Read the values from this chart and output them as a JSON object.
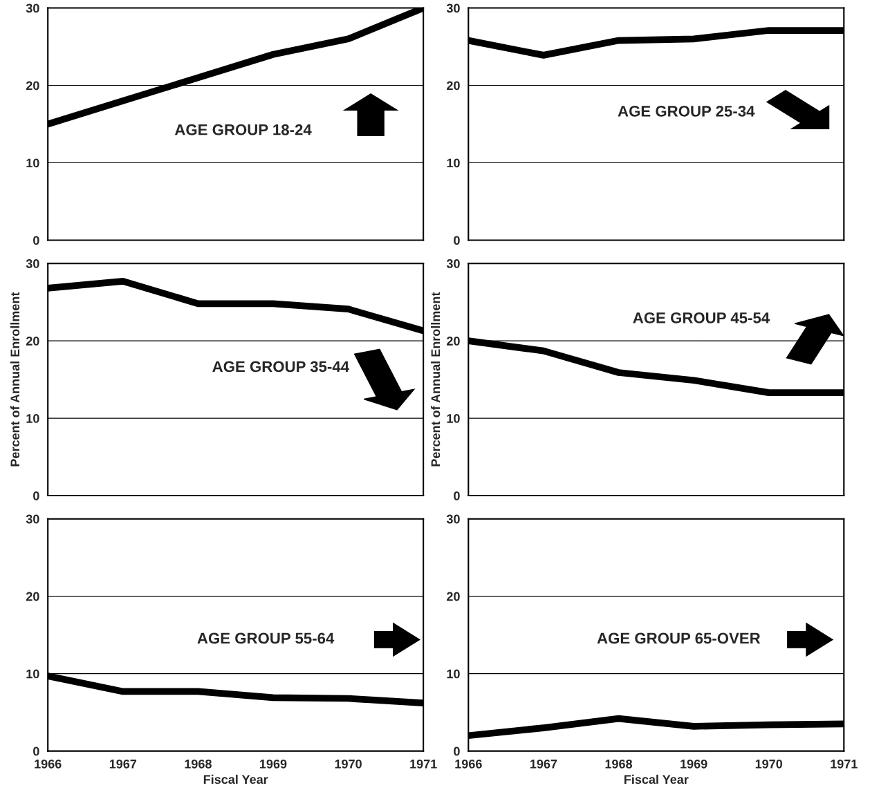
{
  "chart_data": [
    {
      "type": "line",
      "x": [
        1966,
        1967,
        1968,
        1969,
        1970,
        1971
      ],
      "series": [
        {
          "color": "#000000",
          "values": [
            15,
            18,
            21,
            24,
            26,
            30
          ]
        }
      ],
      "xlim": [
        1966,
        1971
      ],
      "ylim": [
        0,
        30
      ],
      "xticks": [
        1966,
        1967,
        1968,
        1969,
        1970,
        1971
      ],
      "yticks": [
        0,
        10,
        20,
        30
      ],
      "tick_labels": "y",
      "grid": "y",
      "annotations": [
        "AGE GROUP 18-24"
      ]
    },
    {
      "type": "line",
      "x": [
        1966,
        1967,
        1968,
        1969,
        1970,
        1971
      ],
      "series": [
        {
          "color": "#000000",
          "values": [
            25.8,
            23.9,
            25.8,
            26,
            27.1,
            27.1
          ]
        }
      ],
      "xlim": [
        1966,
        1971
      ],
      "ylim": [
        0,
        30
      ],
      "xticks": [
        1966,
        1967,
        1968,
        1969,
        1970,
        1971
      ],
      "yticks": [
        0,
        10,
        20,
        30
      ],
      "tick_labels": "y",
      "grid": "y",
      "annotations": [
        "AGE GROUP 25-34"
      ]
    },
    {
      "type": "line",
      "x": [
        1966,
        1967,
        1968,
        1969,
        1970,
        1971
      ],
      "series": [
        {
          "color": "#000000",
          "values": [
            26.8,
            27.7,
            24.8,
            24.8,
            24.1,
            21.3
          ]
        }
      ],
      "xlim": [
        1966,
        1971
      ],
      "ylim": [
        0,
        30
      ],
      "xticks": [
        1966,
        1967,
        1968,
        1969,
        1970,
        1971
      ],
      "yticks": [
        0,
        10,
        20,
        30
      ],
      "tick_labels": "y",
      "grid": "y",
      "ylabel": "Percent of Annual Enrollment",
      "annotations": [
        "AGE GROUP 35-44"
      ]
    },
    {
      "type": "line",
      "x": [
        1966,
        1967,
        1968,
        1969,
        1970,
        1971
      ],
      "series": [
        {
          "color": "#000000",
          "values": [
            20,
            18.7,
            15.9,
            14.9,
            13.3,
            13.3
          ]
        }
      ],
      "xlim": [
        1966,
        1971
      ],
      "ylim": [
        0,
        30
      ],
      "xticks": [
        1966,
        1967,
        1968,
        1969,
        1970,
        1971
      ],
      "yticks": [
        0,
        10,
        20,
        30
      ],
      "tick_labels": "y",
      "grid": "y",
      "ylabel": "Percent of Annual Enrollment",
      "annotations": [
        "AGE GROUP 45-54"
      ]
    },
    {
      "type": "line",
      "x": [
        1966,
        1967,
        1968,
        1969,
        1970,
        1971
      ],
      "series": [
        {
          "color": "#000000",
          "values": [
            9.7,
            7.7,
            7.7,
            6.9,
            6.8,
            6.2
          ]
        }
      ],
      "xlim": [
        1966,
        1971
      ],
      "ylim": [
        0,
        30
      ],
      "xticks": [
        1966,
        1967,
        1968,
        1969,
        1970,
        1971
      ],
      "yticks": [
        0,
        10,
        20,
        30
      ],
      "grid": "y",
      "xlabel": "Fiscal Year",
      "annotations": [
        "AGE GROUP 55-64"
      ]
    },
    {
      "type": "line",
      "x": [
        1966,
        1967,
        1968,
        1969,
        1970,
        1971
      ],
      "series": [
        {
          "color": "#000000",
          "values": [
            2,
            3,
            4.2,
            3.2,
            3.4,
            3.5
          ]
        }
      ],
      "xlim": [
        1966,
        1971
      ],
      "ylim": [
        0,
        30
      ],
      "xticks": [
        1966,
        1967,
        1968,
        1969,
        1970,
        1971
      ],
      "yticks": [
        0,
        10,
        20,
        30
      ],
      "grid": "y",
      "xlabel": "Fiscal Year",
      "annotations": [
        "AGE GROUP 65-OVER"
      ]
    }
  ]
}
